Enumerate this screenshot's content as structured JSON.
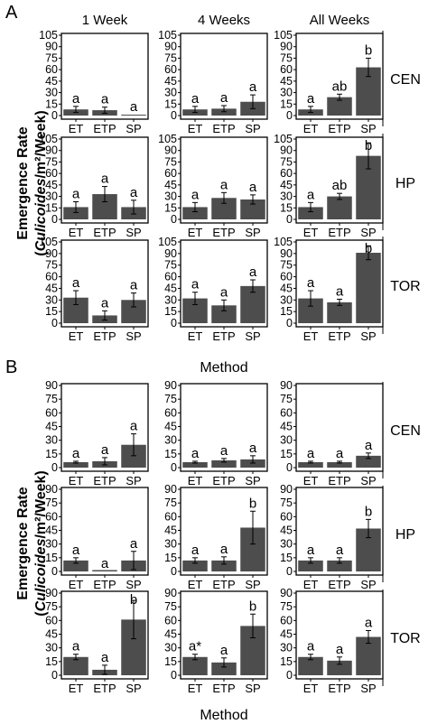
{
  "panel_labels": [
    "A",
    "B"
  ],
  "col_headers": [
    "1 Week",
    "4 Weeks",
    "All Weeks"
  ],
  "row_headers": [
    "CEN",
    "HP",
    "TOR"
  ],
  "y_title_line1": "Emergence Rate",
  "y_title_line2_italic": "Culicoides",
  "y_title_line2_rest": "/m²/Week)",
  "y_title_open_paren": "(",
  "x_title": "Method",
  "bar_color": "#4d4d4d",
  "chart_data": [
    {
      "panel": "A",
      "type": "bar",
      "categories": [
        "ET",
        "ETP",
        "SP"
      ],
      "ylim": [
        0,
        105
      ],
      "yticks": [
        0,
        15,
        30,
        45,
        60,
        75,
        90,
        105
      ],
      "cells": [
        {
          "row": "CEN",
          "col": "1 Week",
          "values": [
            8,
            7,
            1
          ],
          "errors": [
            4,
            4,
            0
          ],
          "letters": [
            "a",
            "a",
            "a"
          ]
        },
        {
          "row": "CEN",
          "col": "4 Weeks",
          "values": [
            8,
            9,
            18
          ],
          "errors": [
            4,
            4,
            9
          ],
          "letters": [
            "a",
            "a",
            "a"
          ]
        },
        {
          "row": "CEN",
          "col": "All Weeks",
          "values": [
            8,
            24,
            63
          ],
          "errors": [
            4,
            4,
            12
          ],
          "letters": [
            "a",
            "ab",
            "b"
          ]
        },
        {
          "row": "HP",
          "col": "1 Week",
          "values": [
            16,
            33,
            16
          ],
          "errors": [
            7,
            10,
            9
          ],
          "letters": [
            "a",
            "a",
            "a"
          ]
        },
        {
          "row": "HP",
          "col": "4 Weeks",
          "values": [
            16,
            28,
            26
          ],
          "errors": [
            6,
            7,
            6
          ],
          "letters": [
            "a",
            "a",
            "a"
          ]
        },
        {
          "row": "HP",
          "col": "All Weeks",
          "values": [
            16,
            30,
            83
          ],
          "errors": [
            6,
            4,
            17
          ],
          "letters": [
            "a",
            "ab",
            "b"
          ]
        },
        {
          "row": "TOR",
          "col": "1 Week",
          "values": [
            33,
            10,
            30
          ],
          "errors": [
            9,
            6,
            9
          ],
          "letters": [
            "a",
            "a",
            "a"
          ]
        },
        {
          "row": "TOR",
          "col": "4 Weeks",
          "values": [
            32,
            23,
            48
          ],
          "errors": [
            8,
            7,
            8
          ],
          "letters": [
            "a",
            "a",
            "a"
          ]
        },
        {
          "row": "TOR",
          "col": "All Weeks",
          "values": [
            32,
            27,
            91
          ],
          "errors": [
            10,
            4,
            9
          ],
          "letters": [
            "a",
            "a",
            "b"
          ]
        }
      ]
    },
    {
      "panel": "B",
      "type": "bar",
      "categories": [
        "ET",
        "ETP",
        "SP"
      ],
      "ylim": [
        0,
        90
      ],
      "yticks": [
        0,
        15,
        30,
        45,
        60,
        75,
        90
      ],
      "cells": [
        {
          "row": "CEN",
          "col": "1 Week",
          "values": [
            6,
            7,
            25
          ],
          "errors": [
            1,
            4,
            12
          ],
          "letters": [
            "a",
            "a",
            "a"
          ]
        },
        {
          "row": "CEN",
          "col": "4 Weeks",
          "values": [
            6,
            8,
            9
          ],
          "errors": [
            1,
            2,
            4
          ],
          "letters": [
            "a",
            "a",
            "a"
          ]
        },
        {
          "row": "CEN",
          "col": "All Weeks",
          "values": [
            6,
            6,
            13
          ],
          "errors": [
            1,
            1,
            3
          ],
          "letters": [
            "a",
            "a",
            "a"
          ]
        },
        {
          "row": "HP",
          "col": "1 Week",
          "values": [
            12,
            0,
            12
          ],
          "errors": [
            3,
            0,
            10
          ],
          "letters": [
            "a",
            "a",
            "a"
          ]
        },
        {
          "row": "HP",
          "col": "4 Weeks",
          "values": [
            12,
            12,
            48
          ],
          "errors": [
            3,
            4,
            18
          ],
          "letters": [
            "a",
            "a",
            "b"
          ]
        },
        {
          "row": "HP",
          "col": "All Weeks",
          "values": [
            12,
            12,
            47
          ],
          "errors": [
            3,
            3,
            10
          ],
          "letters": [
            "a",
            "a",
            "b"
          ]
        },
        {
          "row": "TOR",
          "col": "1 Week",
          "values": [
            20,
            6,
            61
          ],
          "errors": [
            3,
            5,
            21
          ],
          "letters": [
            "a",
            "a",
            "b"
          ]
        },
        {
          "row": "TOR",
          "col": "4 Weeks",
          "values": [
            20,
            14,
            54
          ],
          "errors": [
            3,
            5,
            13
          ],
          "letters": [
            "a*",
            "a",
            "b"
          ]
        },
        {
          "row": "TOR",
          "col": "All Weeks",
          "values": [
            20,
            16,
            42
          ],
          "errors": [
            3,
            4,
            7
          ],
          "letters": [
            "a",
            "a",
            "a"
          ]
        }
      ]
    }
  ]
}
